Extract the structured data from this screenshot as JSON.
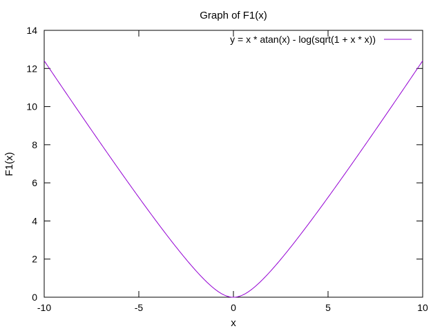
{
  "chart_data": {
    "type": "line",
    "title": "Graph of F1(x)",
    "xlabel": "x",
    "ylabel": "F1(x)",
    "xlim": [
      -10,
      10
    ],
    "ylim": [
      0,
      14
    ],
    "x_ticks": [
      -10,
      -5,
      0,
      5,
      10
    ],
    "y_ticks": [
      0,
      2,
      4,
      6,
      8,
      10,
      12,
      14
    ],
    "grid": false,
    "legend_position": "top-right",
    "series": [
      {
        "name": "y = x * atan(x) - log(sqrt(1 + x * x))",
        "color": "#9400d3",
        "x": [
          -10,
          -9.5,
          -9,
          -8.5,
          -8,
          -7.5,
          -7,
          -6.5,
          -6,
          -5.5,
          -5,
          -4.5,
          -4,
          -3.5,
          -3,
          -2.5,
          -2,
          -1.5,
          -1,
          -0.5,
          0,
          0.5,
          1,
          1.5,
          2,
          2.5,
          3,
          3.5,
          4,
          4.5,
          5,
          5.5,
          6,
          6.5,
          7,
          7.5,
          8,
          8.5,
          9,
          9.5,
          10
        ],
        "y": [
          12.41,
          11.66,
          10.9,
          10.15,
          9.4,
          8.65,
          7.9,
          7.16,
          6.42,
          5.68,
          4.94,
          4.21,
          3.47,
          2.75,
          2.08,
          1.42,
          0.81,
          0.31,
          0.44,
          0.12,
          0,
          0.12,
          0.44,
          0.31,
          0.81,
          1.42,
          2.08,
          2.75,
          3.47,
          4.21,
          4.94,
          5.68,
          6.42,
          7.16,
          7.9,
          8.65,
          9.4,
          10.15,
          10.9,
          11.66,
          12.41
        ]
      }
    ]
  }
}
